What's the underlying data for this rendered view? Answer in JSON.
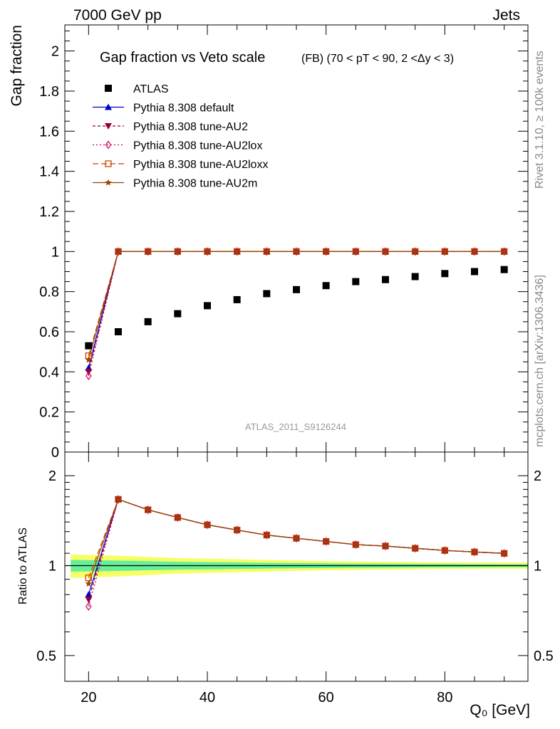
{
  "header": {
    "left": "7000 GeV pp",
    "right": "Jets"
  },
  "side": {
    "rivet": "Rivet 3.1.10, ≥ 100k events",
    "mcplots": "mcplots.cern.ch [arXiv:1306.3436]"
  },
  "colors": {
    "atlas": "#000000",
    "default": "#0000cc",
    "au2": "#990033",
    "au2lox": "#cc0066",
    "au2loxx": "#cc4400",
    "au2m": "#994400",
    "band_inner": "#66ee99",
    "band_outer": "#f5ff66"
  },
  "chart_data": [
    {
      "type": "scatter",
      "title": "Gap fraction vs Veto scale",
      "subtitle": "(FB) (70 < pT <  90, 2 <Δy < 3)",
      "ylabel": "Gap fraction",
      "ylim": [
        0,
        2.13
      ],
      "yticks": [
        "0",
        "0.2",
        "0.4",
        "0.6",
        "0.8",
        "1",
        "1.2",
        "1.4",
        "1.6",
        "1.8",
        "2"
      ],
      "watermark": "ATLAS_2011_S9126244",
      "legend_position": "top-left",
      "x": [
        20,
        25,
        30,
        35,
        40,
        45,
        50,
        55,
        60,
        65,
        70,
        75,
        80,
        85,
        90
      ],
      "series": [
        {
          "name": "ATLAS",
          "key": "atlas",
          "marker": "square",
          "values": [
            0.53,
            0.6,
            0.65,
            0.69,
            0.73,
            0.76,
            0.79,
            0.81,
            0.83,
            0.85,
            0.86,
            0.875,
            0.89,
            0.9,
            0.91
          ]
        },
        {
          "name": "Pythia 8.308 default",
          "key": "default",
          "marker": "triangle-up",
          "dash": "",
          "values": [
            0.42,
            1.0,
            1.0,
            1.0,
            1.0,
            1.0,
            1.0,
            1.0,
            1.0,
            1.0,
            1.0,
            1.0,
            1.0,
            1.0,
            1.0
          ]
        },
        {
          "name": "Pythia 8.308 tune-AU2",
          "key": "au2",
          "marker": "triangle-down",
          "dash": "4,3",
          "values": [
            0.4,
            1.0,
            1.0,
            1.0,
            1.0,
            1.0,
            1.0,
            1.0,
            1.0,
            1.0,
            1.0,
            1.0,
            1.0,
            1.0,
            1.0
          ]
        },
        {
          "name": "Pythia 8.308 tune-AU2lox",
          "key": "au2lox",
          "marker": "diamond-open",
          "dash": "2,3",
          "values": [
            0.38,
            1.0,
            1.0,
            1.0,
            1.0,
            1.0,
            1.0,
            1.0,
            1.0,
            1.0,
            1.0,
            1.0,
            1.0,
            1.0,
            1.0
          ]
        },
        {
          "name": "Pythia 8.308 tune-AU2loxx",
          "key": "au2loxx",
          "marker": "square-open",
          "dash": "8,4",
          "values": [
            0.48,
            1.0,
            1.0,
            1.0,
            1.0,
            1.0,
            1.0,
            1.0,
            1.0,
            1.0,
            1.0,
            1.0,
            1.0,
            1.0,
            1.0
          ]
        },
        {
          "name": "Pythia 8.308 tune-AU2m",
          "key": "au2m",
          "marker": "star",
          "dash": "",
          "values": [
            0.46,
            1.0,
            1.0,
            1.0,
            1.0,
            1.0,
            1.0,
            1.0,
            1.0,
            1.0,
            1.0,
            1.0,
            1.0,
            1.0,
            1.0
          ]
        }
      ]
    },
    {
      "type": "line",
      "ylabel": "Ratio to ATLAS",
      "xlabel": "Q₀ [GeV]",
      "xlim": [
        16,
        94
      ],
      "xticks": [
        "20",
        "40",
        "60",
        "80"
      ],
      "yscale": "log",
      "ylim": [
        0.41,
        2.4
      ],
      "yticks": [
        "0.5",
        "1",
        "2"
      ],
      "x": [
        20,
        25,
        30,
        35,
        40,
        45,
        50,
        55,
        60,
        65,
        70,
        75,
        80,
        85,
        90
      ],
      "series": [
        {
          "key": "default",
          "marker": "triangle-up",
          "dash": "",
          "values": [
            0.8,
            1.667,
            1.538,
            1.449,
            1.37,
            1.316,
            1.266,
            1.235,
            1.205,
            1.176,
            1.163,
            1.143,
            1.124,
            1.111,
            1.099
          ]
        },
        {
          "key": "au2",
          "marker": "triangle-down",
          "dash": "4,3",
          "values": [
            0.77,
            1.667,
            1.538,
            1.449,
            1.37,
            1.316,
            1.266,
            1.235,
            1.205,
            1.176,
            1.163,
            1.143,
            1.124,
            1.111,
            1.099
          ]
        },
        {
          "key": "au2lox",
          "marker": "diamond-open",
          "dash": "2,3",
          "values": [
            0.73,
            1.667,
            1.538,
            1.449,
            1.37,
            1.316,
            1.266,
            1.235,
            1.205,
            1.176,
            1.163,
            1.143,
            1.124,
            1.111,
            1.099
          ]
        },
        {
          "key": "au2loxx",
          "marker": "square-open",
          "dash": "8,4",
          "values": [
            0.91,
            1.667,
            1.538,
            1.449,
            1.37,
            1.316,
            1.266,
            1.235,
            1.205,
            1.176,
            1.163,
            1.143,
            1.124,
            1.111,
            1.099
          ]
        },
        {
          "key": "au2m",
          "marker": "star",
          "dash": "",
          "values": [
            0.87,
            1.667,
            1.538,
            1.449,
            1.37,
            1.316,
            1.266,
            1.235,
            1.205,
            1.176,
            1.163,
            1.143,
            1.124,
            1.111,
            1.099
          ]
        }
      ],
      "uncertainty_band": {
        "x": [
          17,
          25,
          30,
          35,
          40,
          45,
          50,
          55,
          60,
          65,
          70,
          75,
          80,
          85,
          90,
          94
        ],
        "inner_half_width": [
          0.045,
          0.04,
          0.035,
          0.03,
          0.028,
          0.025,
          0.022,
          0.02,
          0.018,
          0.016,
          0.015,
          0.014,
          0.013,
          0.012,
          0.011,
          0.011
        ],
        "outer_half_width": [
          0.09,
          0.08,
          0.07,
          0.06,
          0.055,
          0.05,
          0.045,
          0.04,
          0.035,
          0.032,
          0.03,
          0.028,
          0.026,
          0.025,
          0.024,
          0.024
        ]
      }
    }
  ]
}
